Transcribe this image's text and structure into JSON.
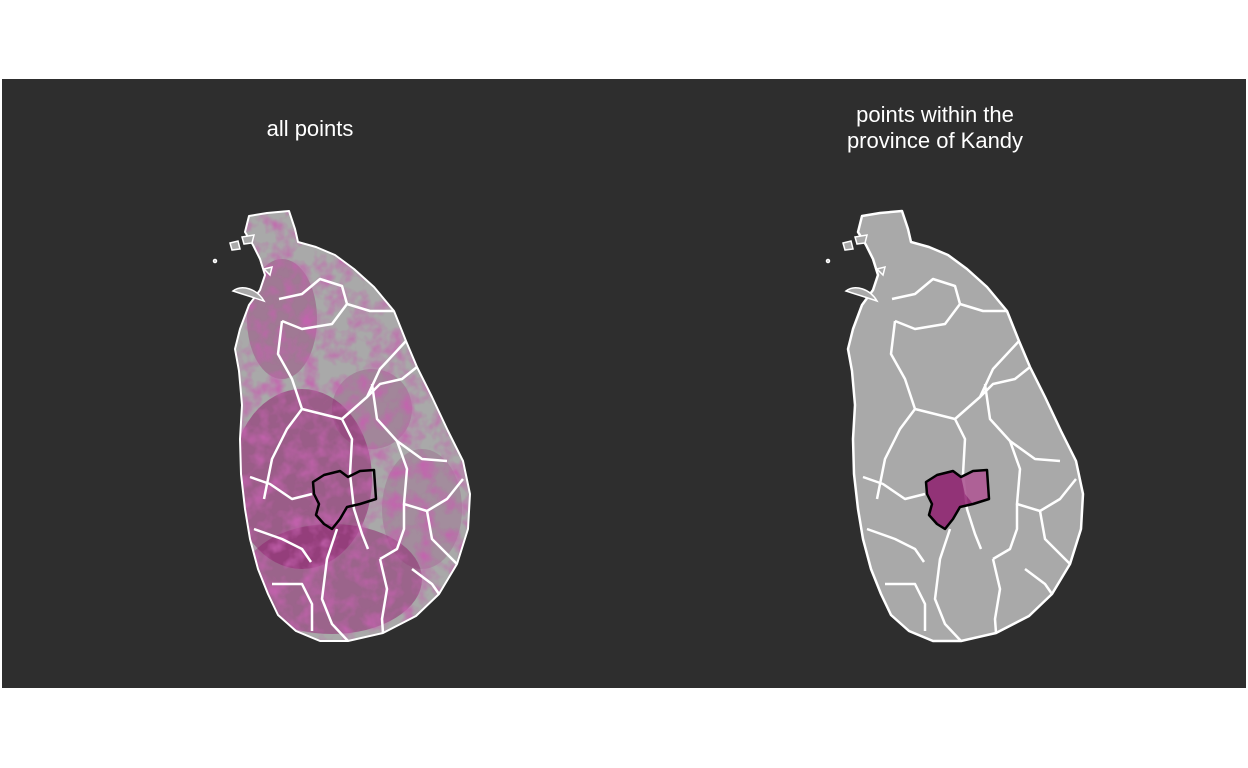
{
  "panels": [
    {
      "title": "all points"
    },
    {
      "title": "points within the\nprovince of Kandy"
    }
  ],
  "colors": {
    "background": "#2e2e2e",
    "land": "#a9a9a9",
    "points": "#8e1f6e",
    "boundary": "#ffffff",
    "highlight_boundary": "#000000"
  },
  "highlighted_region": "Kandy"
}
